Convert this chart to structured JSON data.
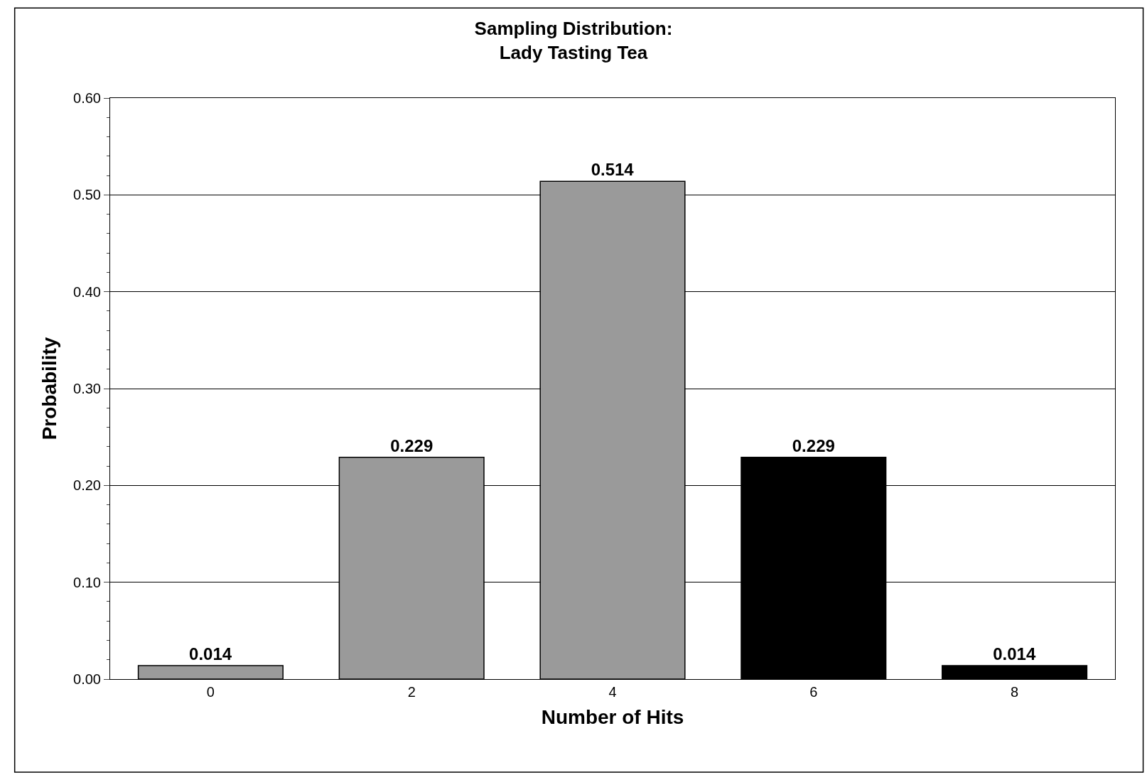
{
  "chart_data": {
    "type": "bar",
    "title": "Sampling Distribution:\nLady Tasting Tea",
    "xlabel": "Number of Hits",
    "ylabel": "Probability",
    "categories": [
      "0",
      "2",
      "4",
      "6",
      "8"
    ],
    "values": [
      0.014,
      0.229,
      0.514,
      0.229,
      0.014
    ],
    "colors": [
      "#9a9a9a",
      "#9a9a9a",
      "#9a9a9a",
      "#000000",
      "#000000"
    ],
    "data_labels": true,
    "ylim": [
      0,
      0.6
    ],
    "yticks": [
      {
        "value": 0,
        "label": "0.00"
      },
      {
        "value": 0.1,
        "label": "0.10"
      },
      {
        "value": 0.2,
        "label": "0.20"
      },
      {
        "value": 0.3,
        "label": "0.30"
      },
      {
        "value": 0.4,
        "label": "0.40"
      },
      {
        "value": 0.5,
        "label": "0.50"
      },
      {
        "value": 0.6,
        "label": "0.60"
      }
    ],
    "grid": "y"
  }
}
